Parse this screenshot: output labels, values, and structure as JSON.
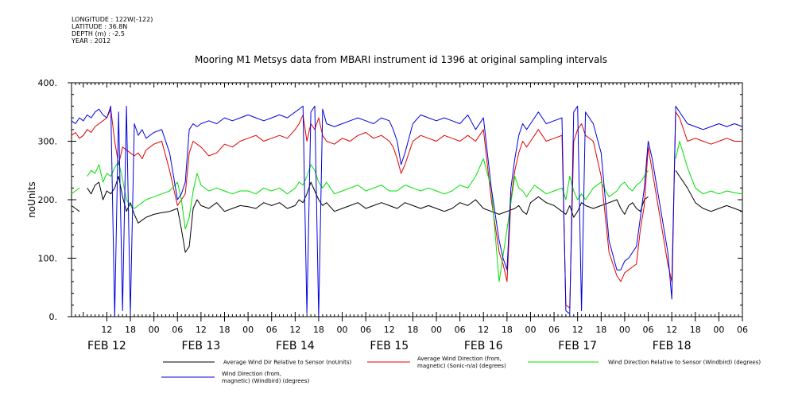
{
  "meta": {
    "longitude": "LONGITUDE : 122W(-122)",
    "latitude": "LATITUDE : 36.8N",
    "depth": "DEPTH (m) : -2.5",
    "year": "YEAR : 2012"
  },
  "chart_data": {
    "type": "line",
    "title": "Mooring M1 Metsys data from MBARI instrument id 1396 at original sampling intervals",
    "ylabel": "noUnits",
    "xlabel": "",
    "ylim": [
      0,
      400
    ],
    "yticks": [
      0,
      100,
      200,
      300,
      400
    ],
    "ytick_labels": [
      "0.",
      "100.",
      "200.",
      "300.",
      "400."
    ],
    "x_unit": "hours since 2012-02-12 00:00",
    "xlim": [
      3,
      174
    ],
    "hour_ticks": [
      {
        "h": 12,
        "label": "12"
      },
      {
        "h": 18,
        "label": "18"
      },
      {
        "h": 24,
        "label": "00"
      },
      {
        "h": 30,
        "label": "06"
      },
      {
        "h": 36,
        "label": "12"
      },
      {
        "h": 42,
        "label": "18"
      },
      {
        "h": 48,
        "label": "00"
      },
      {
        "h": 54,
        "label": "06"
      },
      {
        "h": 60,
        "label": "12"
      },
      {
        "h": 66,
        "label": "18"
      },
      {
        "h": 72,
        "label": "00"
      },
      {
        "h": 78,
        "label": "06"
      },
      {
        "h": 84,
        "label": "12"
      },
      {
        "h": 90,
        "label": "18"
      },
      {
        "h": 96,
        "label": "00"
      },
      {
        "h": 102,
        "label": "06"
      },
      {
        "h": 108,
        "label": "12"
      },
      {
        "h": 114,
        "label": "18"
      },
      {
        "h": 120,
        "label": "00"
      },
      {
        "h": 126,
        "label": "06"
      },
      {
        "h": 132,
        "label": "12"
      },
      {
        "h": 138,
        "label": "18"
      },
      {
        "h": 144,
        "label": "00"
      },
      {
        "h": 150,
        "label": "06"
      },
      {
        "h": 156,
        "label": "12"
      },
      {
        "h": 162,
        "label": "18"
      },
      {
        "h": 168,
        "label": "00"
      },
      {
        "h": 174,
        "label": "06"
      }
    ],
    "day_labels": [
      {
        "h": 12,
        "label": "FEB 12"
      },
      {
        "h": 36,
        "label": "FEB 13"
      },
      {
        "h": 60,
        "label": "FEB 14"
      },
      {
        "h": 84,
        "label": "FEB 15"
      },
      {
        "h": 108,
        "label": "FEB 16"
      },
      {
        "h": 132,
        "label": "FEB 17"
      },
      {
        "h": 156,
        "label": "FEB 18"
      }
    ],
    "legend": [
      {
        "color": "#000000",
        "label_lines": [
          "Average Wind Dir Relative to Sensor (noUnits)"
        ]
      },
      {
        "color": "#e00000",
        "label_lines": [
          "Average Wind Direction (from,",
          "magnetic) (Sonic-n/a) (degrees)"
        ]
      },
      {
        "color": "#00e000",
        "label_lines": [
          "Wind Direction Relative to Sensor (Windbird) (degrees)"
        ]
      },
      {
        "color": "#0000e0",
        "label_lines": [
          "Wind Direction (from,",
          "magnetic) (Windbird) (degrees)"
        ]
      }
    ],
    "series": [
      {
        "name": "Average Wind Dir Relative to Sensor (noUnits)",
        "color": "#000000",
        "x": [
          3,
          4,
          5,
          6,
          7,
          8,
          9,
          10,
          11,
          12,
          13,
          14,
          15,
          16,
          17,
          18,
          19,
          20,
          21,
          22,
          24,
          26,
          28,
          30,
          31,
          32,
          33,
          34,
          35,
          36,
          38,
          40,
          42,
          44,
          46,
          48,
          50,
          52,
          54,
          56,
          58,
          60,
          61,
          62,
          63,
          64,
          65,
          66,
          67,
          68,
          70,
          72,
          74,
          76,
          78,
          80,
          82,
          84,
          86,
          88,
          90,
          92,
          94,
          96,
          98,
          100,
          102,
          104,
          106,
          108,
          110,
          112,
          114,
          116,
          117,
          118,
          119,
          120,
          121,
          122,
          124,
          126,
          128,
          129,
          130,
          131,
          132,
          133,
          134,
          136,
          138,
          140,
          142,
          143,
          144,
          145,
          146,
          147,
          148,
          149,
          150,
          151,
          152,
          153,
          154,
          155,
          156,
          157,
          158,
          160,
          162,
          164,
          166,
          168,
          170,
          172,
          174
        ],
        "y": [
          190,
          185,
          180,
          null,
          220,
          210,
          225,
          230,
          200,
          215,
          210,
          220,
          240,
          205,
          180,
          195,
          175,
          160,
          165,
          170,
          175,
          178,
          180,
          185,
          150,
          110,
          120,
          185,
          200,
          190,
          185,
          195,
          180,
          185,
          190,
          188,
          185,
          195,
          190,
          195,
          185,
          190,
          200,
          195,
          210,
          230,
          215,
          200,
          190,
          195,
          180,
          185,
          190,
          195,
          185,
          190,
          195,
          190,
          185,
          195,
          190,
          185,
          190,
          185,
          180,
          185,
          195,
          190,
          200,
          185,
          180,
          175,
          180,
          185,
          190,
          180,
          175,
          195,
          200,
          205,
          195,
          190,
          180,
          175,
          190,
          170,
          180,
          195,
          190,
          185,
          190,
          195,
          200,
          185,
          175,
          190,
          195,
          185,
          180,
          200,
          205,
          null,
          null,
          null,
          null,
          null,
          null,
          250,
          240,
          220,
          195,
          185,
          180,
          185,
          190,
          185,
          180
        ]
      },
      {
        "name": "Average Wind Direction (from, magnetic) (Sonic-n/a) (degrees)",
        "color": "#e00000",
        "x": [
          3,
          4,
          5,
          6,
          7,
          8,
          9,
          10,
          11,
          12,
          13,
          14,
          15,
          16,
          17,
          18,
          19,
          20,
          21,
          22,
          24,
          26,
          28,
          30,
          31,
          32,
          33,
          34,
          35,
          36,
          38,
          40,
          42,
          44,
          46,
          48,
          50,
          52,
          54,
          56,
          58,
          60,
          61,
          62,
          63,
          64,
          65,
          66,
          67,
          68,
          70,
          72,
          74,
          76,
          78,
          80,
          82,
          84,
          85,
          86,
          87,
          88,
          90,
          92,
          94,
          96,
          98,
          100,
          102,
          104,
          106,
          108,
          110,
          112,
          113,
          114,
          115,
          116,
          117,
          118,
          119,
          120,
          121,
          122,
          124,
          126,
          128,
          129,
          130,
          131,
          132,
          133,
          134,
          136,
          138,
          140,
          142,
          143,
          144,
          145,
          146,
          147,
          148,
          149,
          150,
          151,
          152,
          153,
          154,
          155,
          156,
          157,
          158,
          160,
          162,
          164,
          166,
          168,
          170,
          172,
          174
        ],
        "y": [
          310,
          315,
          305,
          310,
          320,
          315,
          325,
          330,
          335,
          340,
          355,
          300,
          260,
          290,
          285,
          280,
          275,
          280,
          270,
          285,
          295,
          300,
          250,
          190,
          200,
          210,
          280,
          300,
          295,
          290,
          275,
          280,
          295,
          290,
          300,
          305,
          310,
          300,
          305,
          310,
          305,
          320,
          330,
          345,
          300,
          330,
          320,
          340,
          310,
          300,
          295,
          305,
          300,
          310,
          315,
          305,
          310,
          300,
          290,
          270,
          245,
          260,
          300,
          310,
          305,
          300,
          310,
          305,
          300,
          310,
          300,
          320,
          200,
          110,
          90,
          60,
          200,
          250,
          280,
          300,
          290,
          300,
          310,
          320,
          300,
          305,
          310,
          20,
          15,
          300,
          320,
          330,
          310,
          300,
          240,
          110,
          70,
          60,
          75,
          80,
          85,
          90,
          150,
          190,
          290,
          250,
          210,
          170,
          130,
          90,
          60,
          350,
          340,
          300,
          305,
          300,
          295,
          300,
          305,
          300,
          300
        ]
      },
      {
        "name": "Wind Direction Relative to Sensor (Windbird) (degrees)",
        "color": "#00e000",
        "x": [
          3,
          4,
          5,
          6,
          7,
          8,
          9,
          10,
          11,
          12,
          13,
          14,
          15,
          16,
          17,
          18,
          19,
          20,
          21,
          22,
          24,
          26,
          28,
          30,
          31,
          32,
          33,
          34,
          35,
          36,
          38,
          40,
          42,
          44,
          46,
          48,
          50,
          52,
          54,
          56,
          58,
          60,
          61,
          62,
          63,
          64,
          65,
          66,
          67,
          68,
          70,
          72,
          74,
          76,
          78,
          80,
          82,
          84,
          86,
          88,
          90,
          92,
          94,
          96,
          98,
          100,
          102,
          104,
          106,
          108,
          110,
          112,
          114,
          116,
          117,
          118,
          119,
          120,
          121,
          122,
          124,
          126,
          128,
          129,
          130,
          131,
          132,
          133,
          134,
          136,
          138,
          140,
          142,
          143,
          144,
          145,
          146,
          147,
          148,
          149,
          150,
          151,
          152,
          153,
          154,
          155,
          156,
          157,
          158,
          160,
          162,
          164,
          166,
          168,
          170,
          172,
          174
        ],
        "y": [
          210,
          215,
          220,
          null,
          240,
          250,
          245,
          260,
          230,
          245,
          240,
          255,
          265,
          235,
          200,
          190,
          185,
          190,
          195,
          200,
          205,
          210,
          215,
          230,
          200,
          150,
          170,
          215,
          245,
          225,
          215,
          220,
          215,
          210,
          215,
          215,
          210,
          220,
          215,
          220,
          210,
          220,
          230,
          225,
          240,
          260,
          250,
          230,
          220,
          230,
          210,
          215,
          220,
          225,
          215,
          220,
          225,
          215,
          215,
          225,
          220,
          215,
          220,
          215,
          210,
          215,
          225,
          220,
          240,
          270,
          220,
          60,
          150,
          240,
          220,
          215,
          205,
          215,
          225,
          220,
          210,
          215,
          220,
          200,
          240,
          215,
          200,
          210,
          200,
          220,
          230,
          205,
          215,
          225,
          230,
          220,
          215,
          225,
          230,
          240,
          250,
          null,
          null,
          null,
          null,
          null,
          null,
          270,
          300,
          255,
          220,
          210,
          215,
          210,
          215,
          212,
          210
        ]
      },
      {
        "name": "Wind Direction (from, magnetic) (Windbird) (degrees)",
        "color": "#0000e0",
        "x": [
          3,
          4,
          5,
          6,
          7,
          8,
          9,
          10,
          11,
          12,
          13,
          14,
          15,
          16,
          17,
          18,
          19,
          20,
          21,
          22,
          24,
          26,
          28,
          30,
          31,
          32,
          33,
          34,
          35,
          36,
          38,
          40,
          42,
          44,
          46,
          48,
          50,
          52,
          54,
          56,
          58,
          60,
          61,
          62,
          63,
          64,
          65,
          66,
          67,
          68,
          70,
          72,
          74,
          76,
          78,
          80,
          82,
          84,
          85,
          86,
          87,
          88,
          90,
          92,
          94,
          96,
          98,
          100,
          102,
          104,
          106,
          108,
          110,
          112,
          113,
          114,
          115,
          116,
          117,
          118,
          119,
          120,
          121,
          122,
          124,
          126,
          128,
          129,
          130,
          131,
          132,
          133,
          134,
          136,
          138,
          140,
          142,
          143,
          144,
          145,
          146,
          147,
          148,
          149,
          150,
          151,
          152,
          153,
          154,
          155,
          156,
          157,
          158,
          160,
          162,
          164,
          166,
          168,
          170,
          172,
          174
        ],
        "y": [
          335,
          330,
          340,
          335,
          345,
          340,
          350,
          355,
          345,
          340,
          360,
          0,
          350,
          10,
          360,
          5,
          330,
          310,
          320,
          305,
          315,
          320,
          280,
          200,
          210,
          230,
          320,
          330,
          325,
          330,
          335,
          330,
          340,
          335,
          340,
          345,
          340,
          335,
          340,
          345,
          340,
          350,
          355,
          360,
          5,
          350,
          360,
          0,
          355,
          330,
          325,
          330,
          335,
          340,
          335,
          330,
          340,
          335,
          320,
          300,
          260,
          280,
          330,
          345,
          340,
          335,
          340,
          335,
          330,
          345,
          320,
          340,
          220,
          130,
          100,
          80,
          220,
          270,
          310,
          330,
          320,
          330,
          340,
          350,
          330,
          335,
          340,
          10,
          5,
          350,
          360,
          10,
          350,
          330,
          280,
          130,
          80,
          80,
          95,
          100,
          110,
          120,
          170,
          220,
          300,
          270,
          230,
          190,
          150,
          110,
          30,
          360,
          350,
          330,
          325,
          320,
          325,
          330,
          325,
          330,
          325
        ]
      }
    ]
  }
}
